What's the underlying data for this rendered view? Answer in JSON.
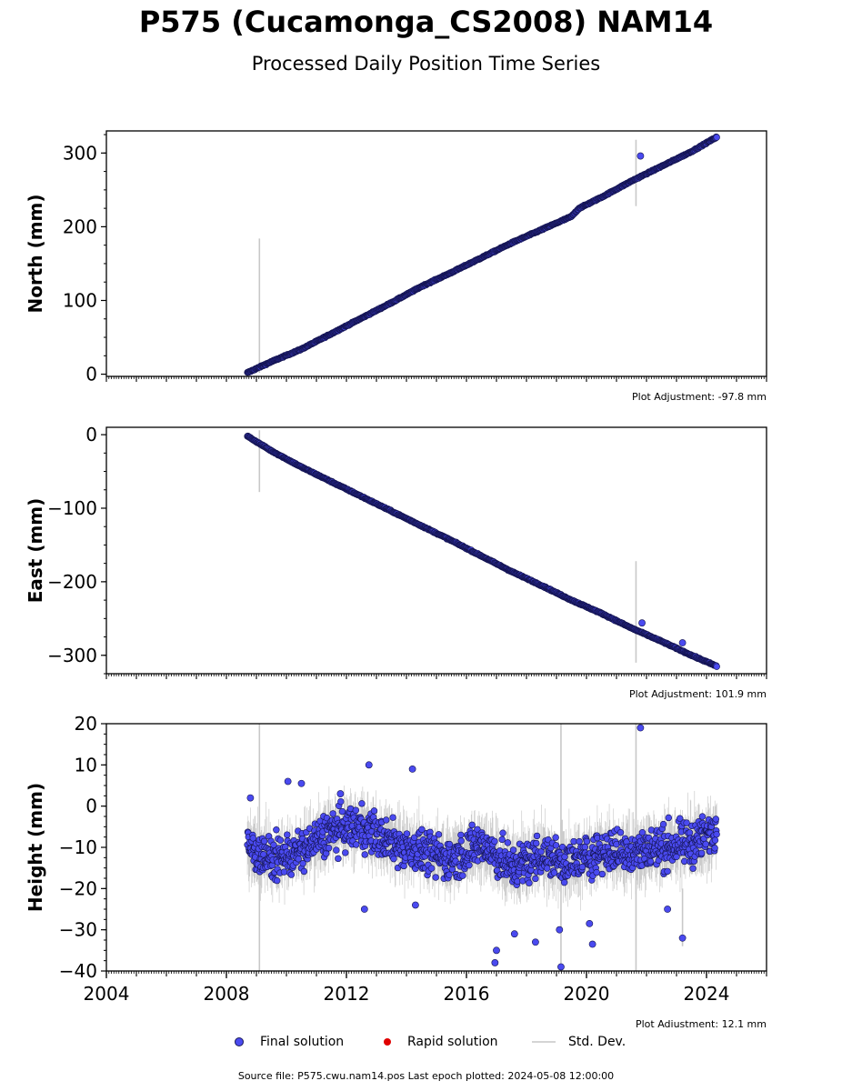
{
  "header": {
    "title": "P575 (Cucamonga_CS2008) NAM14",
    "subtitle": "Processed Daily Position Time Series"
  },
  "colors": {
    "final": "#4a4af0",
    "final_edge": "#141450",
    "rapid": "#e00000",
    "stddev": "#c8c8c8",
    "stddev_dense": "#6e6e6e"
  },
  "legend": {
    "final_label": "Final solution",
    "rapid_label": "Rapid solution",
    "stddev_label": "Std. Dev."
  },
  "footer": {
    "source": "Source file: P575.cwu.nam14.pos  Last epoch plotted: 2024-05-08 12:00:00"
  },
  "chart_data": [
    {
      "type": "scatter",
      "ylabel": "North (mm)",
      "ylim": [
        -3,
        330
      ],
      "yticks": [
        0,
        100,
        200,
        300
      ],
      "xlim": [
        2004,
        2026
      ],
      "adjustment": "Plot Adjustment: -97.8 mm",
      "series": [
        {
          "name": "Final solution",
          "x": [
            2008.7,
            2009.5,
            2010.5,
            2011.5,
            2012.5,
            2013.5,
            2014.5,
            2015.5,
            2016.5,
            2017.5,
            2018.5,
            2019.5,
            2019.75,
            2020.5,
            2021.5,
            2022.5,
            2023.5,
            2024.35
          ],
          "y": [
            2,
            17,
            34,
            55,
            76,
            97,
            119,
            138,
            158,
            178,
            196,
            214,
            225,
            240,
            262,
            282,
            302,
            322
          ]
        }
      ],
      "outliers": [
        [
          2021.8,
          296
        ]
      ],
      "errorbars": [
        [
          2009.1,
          2,
          184
        ],
        [
          2021.65,
          228,
          318
        ]
      ]
    },
    {
      "type": "scatter",
      "ylabel": "East (mm)",
      "ylim": [
        -325,
        10
      ],
      "yticks": [
        0,
        -100,
        -200,
        -300
      ],
      "xlim": [
        2004,
        2026
      ],
      "adjustment": "Plot Adjustment: 101.9 mm",
      "series": [
        {
          "name": "Final solution",
          "x": [
            2008.7,
            2009.5,
            2010.5,
            2011.5,
            2012.5,
            2013.5,
            2014.5,
            2015.5,
            2016.5,
            2017.5,
            2018.5,
            2019.5,
            2020.5,
            2021.5,
            2022.5,
            2023.5,
            2024.35
          ],
          "y": [
            -2,
            -22,
            -44,
            -64,
            -84,
            -104,
            -124,
            -144,
            -165,
            -186,
            -205,
            -225,
            -243,
            -263,
            -281,
            -300,
            -315
          ]
        }
      ],
      "outliers": [
        [
          2021.85,
          -256
        ],
        [
          2023.2,
          -283
        ]
      ],
      "errorbars": [
        [
          2009.1,
          -78,
          6
        ],
        [
          2021.65,
          -310,
          -172
        ]
      ]
    },
    {
      "type": "scatter",
      "ylabel": "Height (mm)",
      "xlabel": "",
      "ylim": [
        -40,
        20
      ],
      "yticks": [
        20,
        10,
        0,
        -10,
        -20,
        -30,
        -40
      ],
      "xlim": [
        2004,
        2026
      ],
      "xticks": [
        2004,
        2008,
        2012,
        2016,
        2020,
        2024
      ],
      "adjustment": "Plot Adjustment: 12.1 mm",
      "series": [
        {
          "name": "Final solution",
          "x": [
            2008.7,
            2009.5,
            2010.5,
            2011.5,
            2012.5,
            2013.5,
            2014.5,
            2015.5,
            2016.5,
            2017.5,
            2018.5,
            2019.5,
            2020.5,
            2021.5,
            2022.5,
            2023.5,
            2024.35
          ],
          "y": [
            -10,
            -13,
            -11,
            -6,
            -5,
            -9,
            -11,
            -13,
            -9,
            -15,
            -12,
            -14,
            -11,
            -11,
            -10,
            -9,
            -6
          ],
          "spread": 8
        }
      ],
      "outliers": [
        [
          2021.8,
          19
        ],
        [
          2012.75,
          10
        ],
        [
          2014.2,
          9
        ],
        [
          2010.05,
          6
        ],
        [
          2010.5,
          5.5
        ],
        [
          2016.95,
          -38
        ],
        [
          2017.0,
          -35
        ],
        [
          2019.15,
          -39
        ],
        [
          2020.2,
          -33.5
        ],
        [
          2023.2,
          -32
        ],
        [
          2018.3,
          -33
        ],
        [
          2017.6,
          -31
        ],
        [
          2019.1,
          -30
        ],
        [
          2020.1,
          -28.5
        ],
        [
          2022.7,
          -25
        ],
        [
          2012.6,
          -25
        ],
        [
          2014.3,
          -24
        ],
        [
          2008.8,
          2
        ],
        [
          2011.8,
          3
        ]
      ],
      "errorbars": [
        [
          2009.1,
          -40,
          20
        ],
        [
          2019.15,
          -40,
          20
        ],
        [
          2021.65,
          -40,
          20
        ],
        [
          2023.2,
          -34,
          -20
        ]
      ]
    }
  ]
}
